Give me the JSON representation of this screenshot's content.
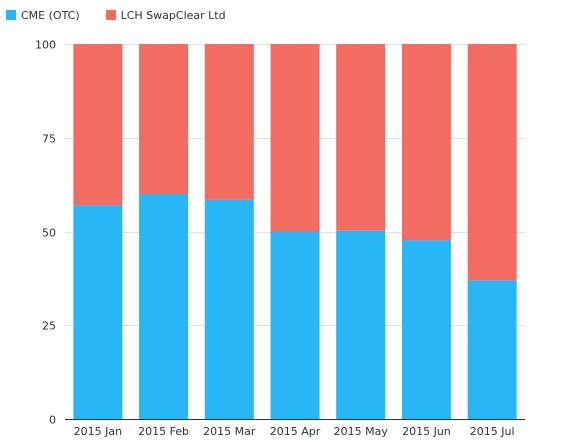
{
  "chart_data": {
    "type": "bar",
    "stacked": true,
    "categories": [
      "2015 Jan",
      "2015 Feb",
      "2015 Mar",
      "2015 Apr",
      "2015 May",
      "2015 Jun",
      "2015 Jul"
    ],
    "series": [
      {
        "name": "CME (OTC)",
        "color": "#29b6f6",
        "values": [
          57,
          60,
          58.5,
          50,
          50.2,
          47.7,
          37
        ]
      },
      {
        "name": "LCH SwapClear Ltd",
        "color": "#f26c62",
        "values": [
          43,
          40,
          41.5,
          50,
          49.8,
          52.3,
          63
        ]
      }
    ],
    "ylim": [
      0,
      100
    ],
    "yticks": [
      0,
      25,
      50,
      75,
      100
    ],
    "grid": true,
    "legend_position": "top-left"
  }
}
